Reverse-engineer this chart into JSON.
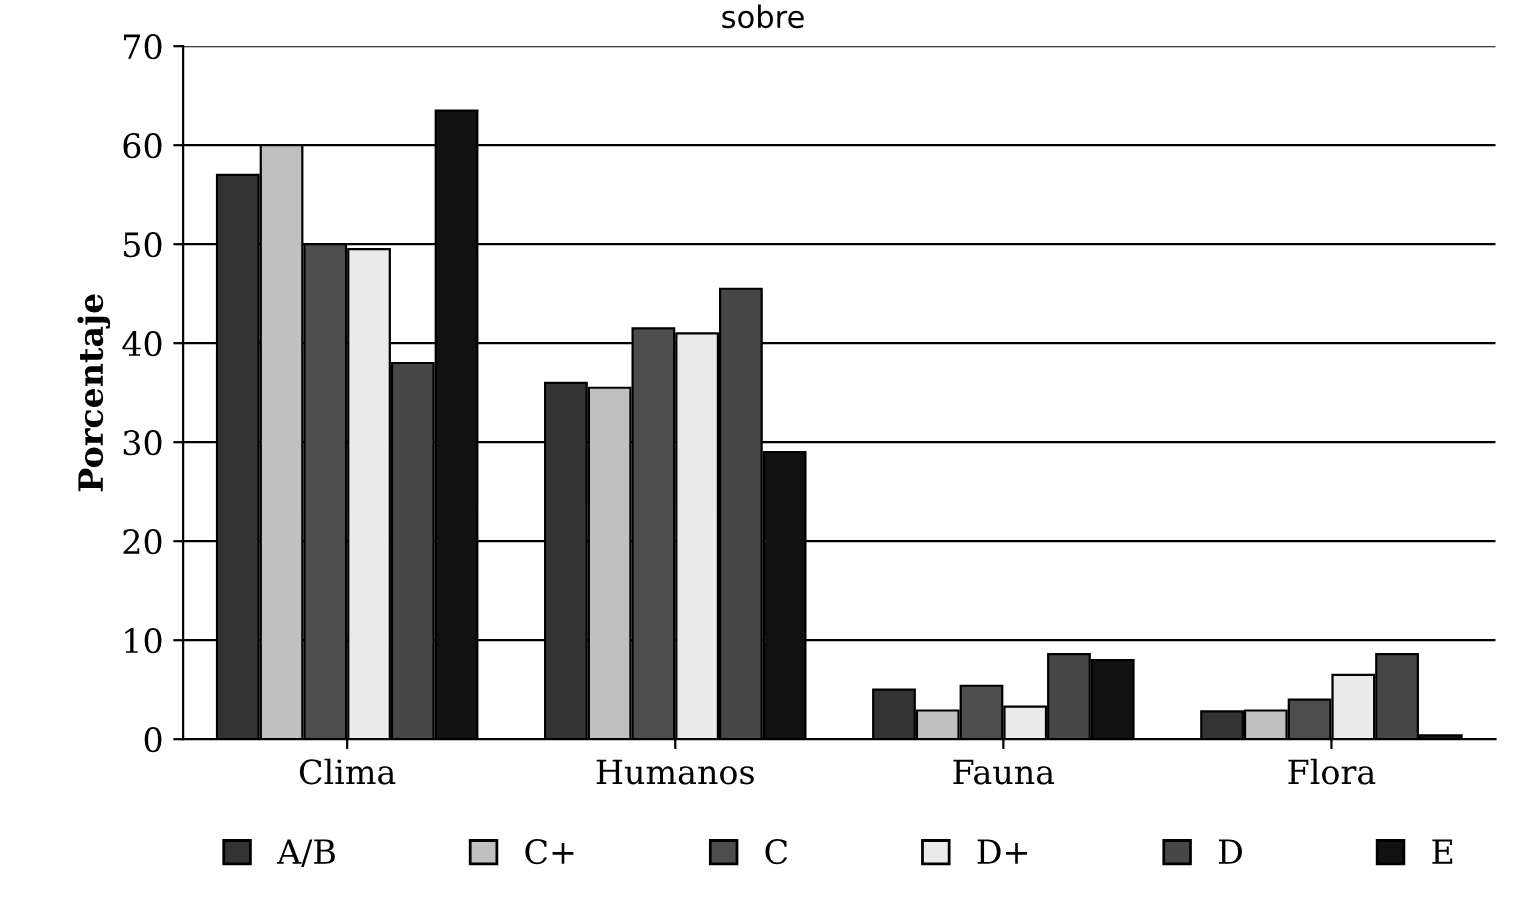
{
  "chart_data": {
    "type": "bar",
    "title": "sobre",
    "ylabel": "Porcentaje",
    "categories": [
      "Clima",
      "Humanos",
      "Fauna",
      "Flora"
    ],
    "series": [
      {
        "name": "A/B",
        "color": "#333333",
        "values": [
          57,
          36,
          5,
          2.8
        ]
      },
      {
        "name": "C+",
        "color": "#c0c0c0",
        "values": [
          60,
          35.5,
          2.9,
          2.9
        ]
      },
      {
        "name": "C",
        "color": "#4d4d4d",
        "values": [
          50,
          41.5,
          5.4,
          4
        ]
      },
      {
        "name": "D+",
        "color": "#eaeaea",
        "values": [
          49.5,
          41,
          3.3,
          6.5
        ]
      },
      {
        "name": "D",
        "color": "#474747",
        "values": [
          38,
          45.5,
          8.6,
          8.6
        ]
      },
      {
        "name": "E",
        "color": "#111111",
        "values": [
          63.5,
          29,
          8,
          0.4
        ]
      }
    ],
    "ylim": [
      0,
      70
    ],
    "yticks": [
      0,
      10,
      20,
      30,
      40,
      50,
      60,
      70
    ],
    "grid": "y",
    "legend": "bottom"
  }
}
